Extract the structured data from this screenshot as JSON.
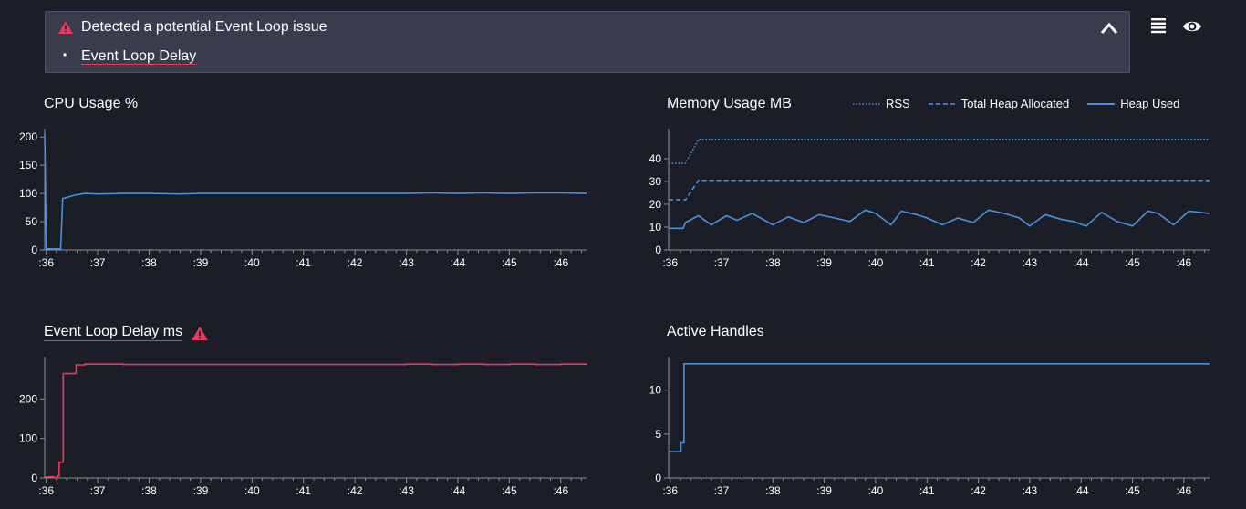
{
  "alert": {
    "title": "Detected a potential Event Loop issue",
    "items": [
      "Event Loop Delay"
    ]
  },
  "toolbar": {
    "list_icon": "list-icon",
    "eye_icon": "eye-icon"
  },
  "colors": {
    "background": "#1b1e27",
    "series": "#4a90e2",
    "alert": "#e8385d",
    "panel": "#383c4d"
  },
  "charts": {
    "cpu": {
      "title": "CPU Usage %"
    },
    "memory": {
      "title": "Memory Usage MB",
      "legend": [
        "RSS",
        "Total Heap Allocated",
        "Heap Used"
      ]
    },
    "eventloop": {
      "title": "Event Loop Delay ms"
    },
    "handles": {
      "title": "Active Handles"
    }
  },
  "chart_data": [
    {
      "id": "cpu",
      "type": "line",
      "title": "CPU Usage %",
      "x_ticks": [
        ":36",
        ":37",
        ":38",
        ":39",
        ":40",
        ":41",
        ":42",
        ":43",
        ":44",
        ":45",
        ":46"
      ],
      "y_ticks": [
        0,
        50,
        100,
        150,
        200
      ],
      "ylim": [
        0,
        210
      ],
      "xlim": [
        35.97,
        46.5
      ],
      "series": [
        {
          "x": [
            35.97,
            36.0,
            36.03,
            36.28,
            36.32,
            36.55,
            36.75,
            37.0,
            37.5,
            38.0,
            38.6,
            39.0,
            40,
            41,
            42,
            43,
            43.5,
            44,
            44.5,
            45,
            45.5,
            46,
            46.5
          ],
          "y": [
            205,
            2,
            2,
            2,
            91,
            97,
            100,
            99,
            100,
            100,
            99,
            100,
            100,
            100,
            100,
            100,
            101,
            100,
            101,
            100,
            101,
            101,
            100
          ]
        }
      ]
    },
    {
      "id": "memory",
      "type": "line",
      "title": "Memory Usage MB",
      "x_ticks": [
        ":36",
        ":37",
        ":38",
        ":39",
        ":40",
        ":41",
        ":42",
        ":43",
        ":44",
        ":45",
        ":46"
      ],
      "y_ticks": [
        0,
        10,
        20,
        30,
        40
      ],
      "ylim": [
        0,
        52
      ],
      "xlim": [
        35.97,
        46.5
      ],
      "series": [
        {
          "name": "RSS",
          "style": "dotted",
          "x": [
            35.97,
            36.3,
            36.55,
            46.5
          ],
          "y": [
            38,
            38,
            48.5,
            48.5
          ]
        },
        {
          "name": "Total Heap Allocated",
          "style": "dashed",
          "x": [
            35.97,
            36.3,
            36.55,
            46.5
          ],
          "y": [
            22,
            22,
            30.5,
            30.5
          ]
        },
        {
          "name": "Heap Used",
          "style": "solid",
          "x": [
            35.97,
            36.25,
            36.3,
            36.55,
            36.8,
            37.1,
            37.3,
            37.6,
            38.0,
            38.3,
            38.6,
            38.9,
            39.2,
            39.5,
            39.8,
            40.0,
            40.3,
            40.5,
            40.8,
            41.0,
            41.3,
            41.6,
            41.9,
            42.2,
            42.5,
            42.8,
            43.0,
            43.3,
            43.6,
            43.85,
            44.1,
            44.4,
            44.7,
            45.0,
            45.3,
            45.5,
            45.8,
            46.1,
            46.5
          ],
          "y": [
            9.5,
            9.5,
            12,
            15,
            11,
            15,
            13,
            16,
            11,
            14.5,
            12,
            15.5,
            14,
            12.5,
            17.5,
            16,
            11,
            17,
            15.5,
            14,
            11,
            14,
            12,
            17.5,
            16,
            14,
            10.5,
            15.5,
            13.5,
            12.5,
            10.5,
            16.5,
            12.5,
            10.5,
            17,
            16,
            11,
            17,
            16
          ]
        }
      ]
    },
    {
      "id": "eventloop",
      "type": "line",
      "title": "Event Loop Delay ms",
      "x_ticks": [
        ":36",
        ":37",
        ":38",
        ":39",
        ":40",
        ":41",
        ":42",
        ":43",
        ":44",
        ":45",
        ":46"
      ],
      "y_ticks": [
        0,
        100,
        200
      ],
      "ylim": [
        0,
        300
      ],
      "xlim": [
        35.97,
        46.5
      ],
      "series": [
        {
          "x": [
            35.97,
            36.1,
            36.14,
            36.22,
            36.25,
            36.3,
            36.33,
            36.55,
            36.58,
            36.75,
            37.5,
            38.5,
            40,
            42,
            43.0,
            43.5,
            44,
            44.5,
            45,
            45.5,
            46,
            46.5
          ],
          "y": [
            3,
            3,
            1,
            5,
            40,
            40,
            264,
            264,
            286,
            288,
            287,
            287,
            287,
            287,
            288,
            287,
            288,
            287,
            288,
            287,
            288,
            287
          ]
        }
      ]
    },
    {
      "id": "handles",
      "type": "line",
      "title": "Active Handles",
      "x_ticks": [
        ":36",
        ":37",
        ":38",
        ":39",
        ":40",
        ":41",
        ":42",
        ":43",
        ":44",
        ":45",
        ":46"
      ],
      "y_ticks": [
        0,
        5,
        10
      ],
      "ylim": [
        0,
        13.5
      ],
      "xlim": [
        35.97,
        46.5
      ],
      "series": [
        {
          "x": [
            35.97,
            36.2,
            36.21,
            36.26,
            36.27,
            46.5
          ],
          "y": [
            3,
            3,
            4,
            4,
            13,
            13
          ]
        }
      ]
    }
  ]
}
